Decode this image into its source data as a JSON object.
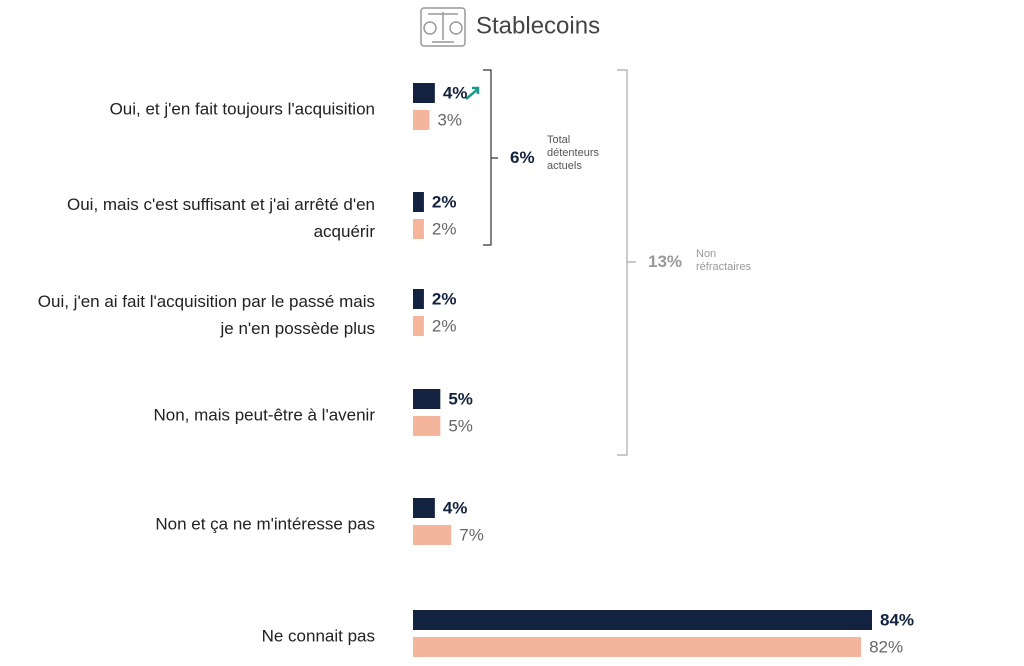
{
  "chart_data": {
    "type": "bar",
    "orientation": "horizontal",
    "title": "Stablecoins",
    "categories": [
      "Oui, et j'en fait toujours l'acquisition",
      "Oui, mais c'est suffisant et j'ai arrêté d'en acquérir",
      "Oui, j'en ai fait l'acquisition par le passé mais je n'en possède plus",
      "Non, mais peut-être à l'avenir",
      "Non et ça ne m'intéresse pas",
      "Ne connait pas"
    ],
    "series": [
      {
        "color": "#13223f",
        "values": [
          4,
          2,
          2,
          5,
          4,
          84
        ],
        "value_labels": [
          "4%",
          "2%",
          "2%",
          "5%",
          "4%",
          "84%"
        ]
      },
      {
        "color": "#f5b49c",
        "values": [
          3,
          2,
          2,
          5,
          7,
          82
        ],
        "value_labels": [
          "3%",
          "2%",
          "2%",
          "5%",
          "7%",
          "82%"
        ]
      }
    ],
    "annotations": [
      {
        "label": "6%",
        "text": "Total détenteurs actuels"
      },
      {
        "label": "13%",
        "text": "Non réfractaires"
      }
    ]
  }
}
